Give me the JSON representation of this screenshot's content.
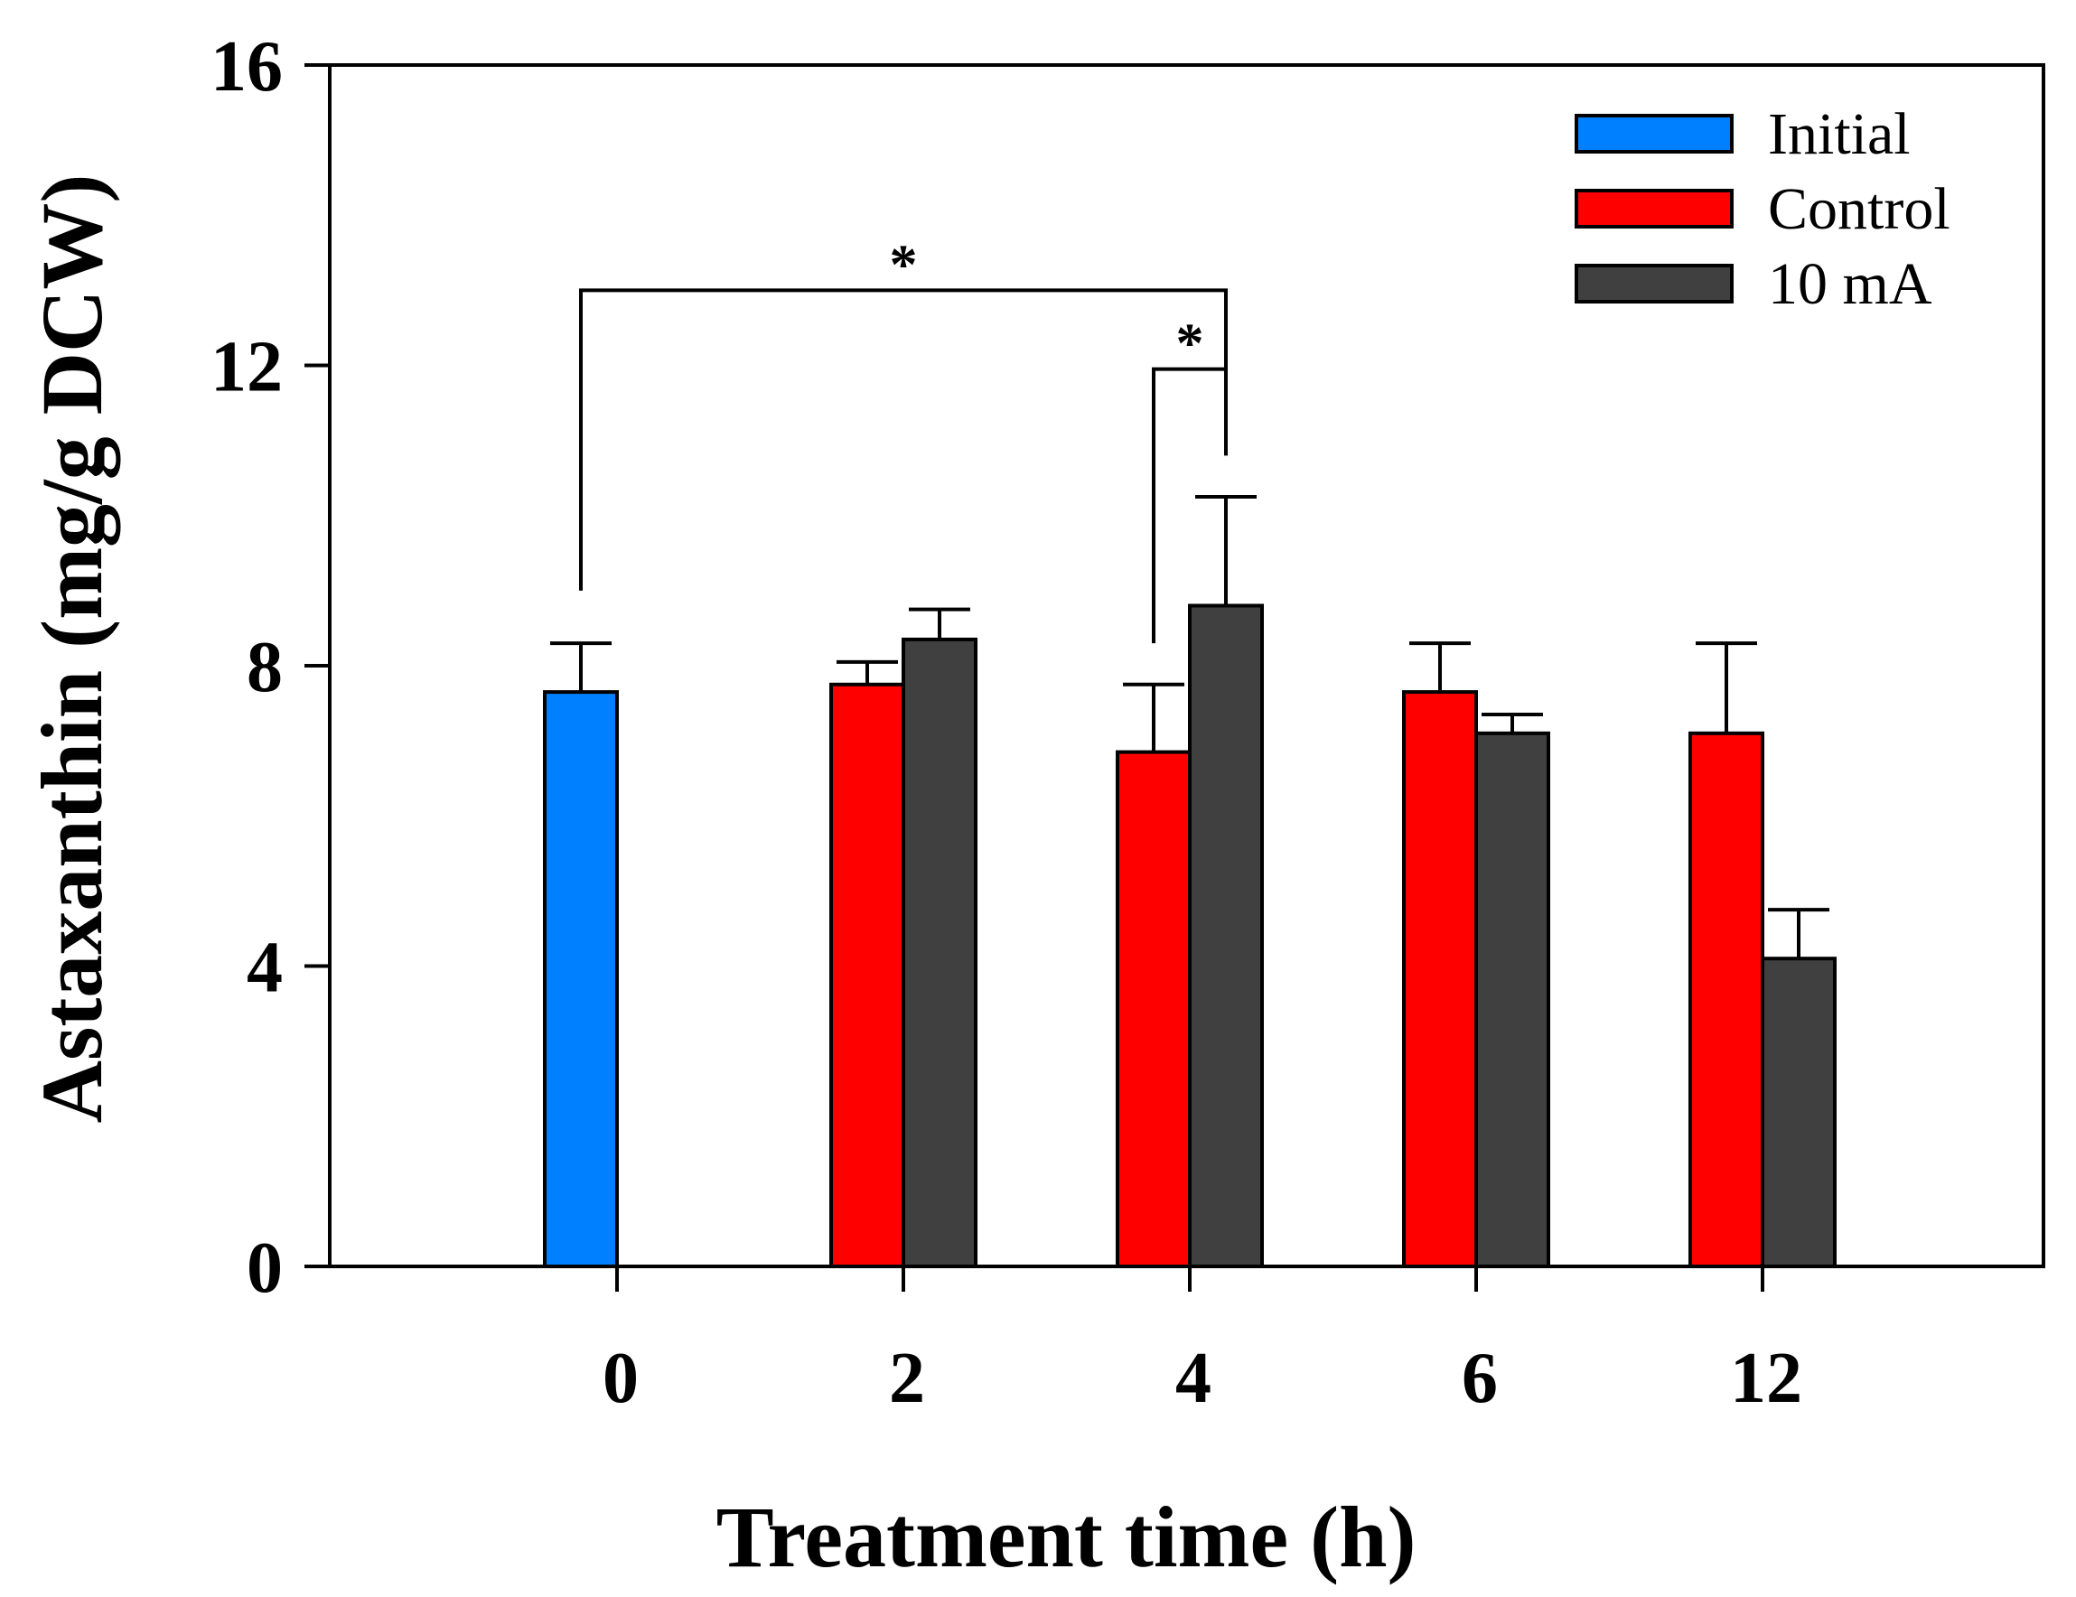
{
  "chart_data": {
    "type": "bar",
    "title": "",
    "xlabel": "Treatment time (h)",
    "ylabel": "Astaxanthin (mg/g DCW)",
    "ylim": [
      0,
      16
    ],
    "yticks": [
      0,
      4,
      8,
      12,
      16
    ],
    "categories": [
      "0",
      "2",
      "4",
      "6",
      "12"
    ],
    "grid": false,
    "legend_position": "top-right",
    "series": [
      {
        "name": "Initial",
        "color": "#0080ff",
        "values": [
          7.65,
          null,
          null,
          null,
          null
        ],
        "errors": [
          0.65,
          null,
          null,
          null,
          null
        ]
      },
      {
        "name": "Control",
        "color": "#ff0000",
        "values": [
          null,
          7.75,
          6.85,
          7.65,
          7.1
        ],
        "errors": [
          null,
          0.3,
          0.9,
          0.65,
          1.2
        ]
      },
      {
        "name": "10 mA",
        "color": "#404040",
        "values": [
          null,
          8.35,
          8.8,
          7.1,
          4.1
        ],
        "errors": [
          null,
          0.4,
          1.45,
          0.25,
          0.65
        ]
      }
    ],
    "annotations": [
      {
        "label": "*",
        "from": {
          "category": "0",
          "series": "Initial",
          "value": 9.0
        },
        "to": {
          "category": "4",
          "series": "10 mA",
          "value": 10.8
        },
        "bracket_value": 13.0
      },
      {
        "label": "*",
        "from": {
          "category": "4",
          "series": "Control",
          "value": 8.3
        },
        "to": {
          "category": "4",
          "series": "10 mA",
          "value": 10.8
        },
        "bracket_value": 11.95
      }
    ]
  }
}
